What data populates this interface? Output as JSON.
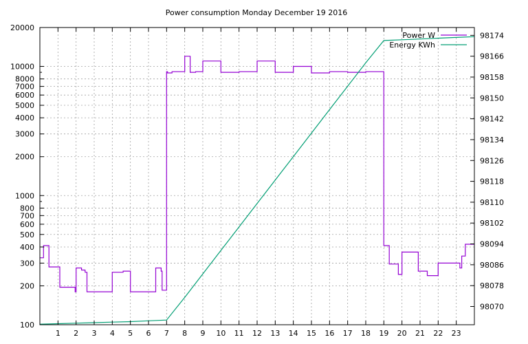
{
  "chart_data": {
    "type": "line",
    "title": "Power consumption Monday December 19 2016",
    "xlabel": "",
    "ylabel": "",
    "y2label": "",
    "grid": true,
    "legend_position": "top-right",
    "x_range": [
      0,
      24
    ],
    "x_ticks": [
      1,
      2,
      3,
      4,
      5,
      6,
      7,
      8,
      9,
      10,
      11,
      12,
      13,
      14,
      15,
      16,
      17,
      18,
      19,
      20,
      21,
      22,
      23
    ],
    "y_scale": "log",
    "y_range": [
      100,
      20000
    ],
    "y_ticks": [
      100,
      200,
      300,
      400,
      500,
      600,
      700,
      800,
      1000,
      2000,
      3000,
      4000,
      5000,
      6000,
      7000,
      8000,
      10000,
      20000
    ],
    "y2_range": [
      98063,
      98177
    ],
    "y2_ticks": [
      98070,
      98078,
      98086,
      98094,
      98102,
      98110,
      98118,
      98126,
      98134,
      98142,
      98150,
      98158,
      98166,
      98174
    ],
    "series": [
      {
        "name": "Power W",
        "axis": "left",
        "color": "#9400d3",
        "x": [
          0,
          0.2,
          0.2,
          0.5,
          0.5,
          1.1,
          1.1,
          1.95,
          1.95,
          2.0,
          2.0,
          2.3,
          2.3,
          2.5,
          2.5,
          2.6,
          2.6,
          4.0,
          4.0,
          4.6,
          4.6,
          5.0,
          5.0,
          6.4,
          6.4,
          6.7,
          6.7,
          6.75,
          6.75,
          7.0,
          7.0,
          7.05,
          7.05,
          7.3,
          7.3,
          8.0,
          8.0,
          8.3,
          8.3,
          8.6,
          8.6,
          9.0,
          9.0,
          10.0,
          10.0,
          11.0,
          11.0,
          12.0,
          12.0,
          13.0,
          13.0,
          14.0,
          14.0,
          15.0,
          15.0,
          16.0,
          16.0,
          17.0,
          17.0,
          18.0,
          18.0,
          19.0,
          19.0,
          19.3,
          19.3,
          19.8,
          19.8,
          20.0,
          20.0,
          20.9,
          20.9,
          21.4,
          21.4,
          22.0,
          22.0,
          23.2,
          23.2,
          23.3,
          23.3,
          23.5,
          23.5,
          24.0
        ],
        "values": [
          330,
          330,
          410,
          410,
          280,
          280,
          195,
          195,
          180,
          180,
          275,
          275,
          265,
          265,
          255,
          255,
          180,
          180,
          255,
          255,
          260,
          260,
          180,
          180,
          275,
          275,
          260,
          260,
          185,
          185,
          9100,
          9100,
          8900,
          8900,
          9100,
          9100,
          12000,
          12000,
          9000,
          9000,
          9100,
          9100,
          11000,
          11000,
          9000,
          9000,
          9100,
          9100,
          11000,
          11000,
          9000,
          9000,
          10000,
          10000,
          8900,
          8900,
          9100,
          9100,
          9000,
          9000,
          9100,
          9100,
          410,
          410,
          295,
          295,
          245,
          245,
          365,
          365,
          260,
          260,
          240,
          240,
          300,
          300,
          275,
          275,
          340,
          340,
          420,
          420
        ]
      },
      {
        "name": "Energy KWh",
        "axis": "right",
        "color": "#009e73",
        "x": [
          0,
          1,
          2,
          3,
          4,
          5,
          6,
          7,
          8,
          9,
          10,
          11,
          12,
          13,
          14,
          15,
          16,
          17,
          18,
          19,
          20,
          21,
          22,
          23,
          24
        ],
        "values": [
          98063.2,
          98063.4,
          98063.6,
          98063.8,
          98064.0,
          98064.2,
          98064.5,
          98064.8,
          98073.5,
          98082.5,
          98091.5,
          98100.5,
          98109.5,
          98118.5,
          98127.5,
          98136.5,
          98145.5,
          98154.5,
          98163.5,
          98172.0,
          98172.3,
          98172.6,
          98172.9,
          98173.2,
          98173.5
        ]
      }
    ]
  }
}
